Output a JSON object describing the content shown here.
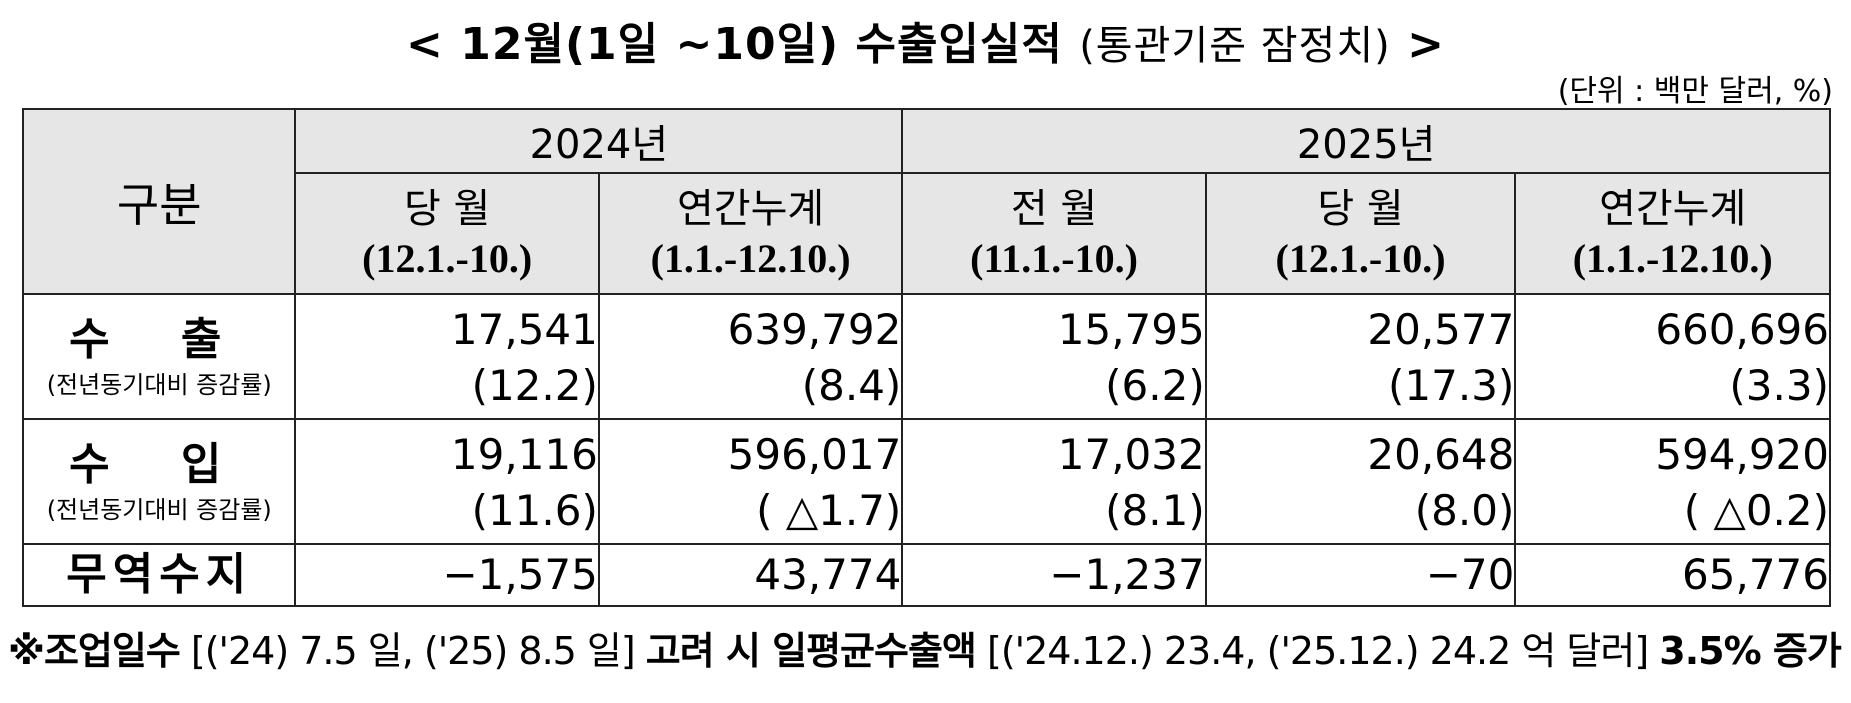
{
  "title": {
    "main": "< 12월(1일 ~10일) 수출입실적",
    "sub": "(통관기준  잠정치)",
    "end": ">"
  },
  "unit": "(단위 : 백만  달러, %)",
  "header": {
    "corner": "구분",
    "years": [
      "2024년",
      "2025년"
    ],
    "columns": [
      {
        "label": "당  월",
        "period": "(12.1.-10.)"
      },
      {
        "label": "연간누계",
        "period": "(1.1.-12.10.)"
      },
      {
        "label": "전  월",
        "period": "(11.1.-10.)"
      },
      {
        "label": "당  월",
        "period": "(12.1.-10.)"
      },
      {
        "label": "연간누계",
        "period": "(1.1.-12.10.)"
      }
    ]
  },
  "rows": {
    "export": {
      "label": "수  출",
      "note": "(전년동기대비 증감률)",
      "values": [
        "17,541",
        "639,792",
        "15,795",
        "20,577",
        "660,696"
      ],
      "rates": [
        "(12.2)",
        "(8.4)",
        "(6.2)",
        "(17.3)",
        "(3.3)"
      ]
    },
    "import": {
      "label": "수  입",
      "note": "(전년동기대비 증감률)",
      "values": [
        "19,116",
        "596,017",
        "17,032",
        "20,648",
        "594,920"
      ],
      "rates": [
        "(11.6)",
        "( △1.7)",
        "(8.1)",
        "(8.0)",
        "( △0.2)"
      ]
    },
    "balance": {
      "label": "무역수지",
      "values": [
        "−1,575",
        "43,774",
        "−1,237",
        "−70",
        "65,776"
      ]
    }
  },
  "footnote": {
    "prefix": "※조업일수",
    "days": "[('24) 7.5 일, ('25) 8.5 일]",
    "middle": "고려  시  일평균수출액",
    "avg": "[('24.12.) 23.4, ('25.12.) 24.2 억  달러]",
    "result": "3.5%  증가"
  }
}
